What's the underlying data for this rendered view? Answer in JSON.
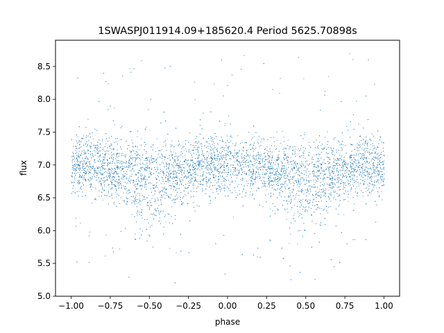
{
  "chart_data": {
    "type": "scatter",
    "title": "1SWASPJ011914.09+185620.4 Period 5625.70898s",
    "xlabel": "phase",
    "ylabel": "flux",
    "xlim": [
      -1.1,
      1.1
    ],
    "ylim": [
      5.0,
      8.9
    ],
    "xticks": [
      -1.0,
      -0.75,
      -0.5,
      -0.25,
      0.0,
      0.25,
      0.5,
      0.75,
      1.0
    ],
    "xtick_labels": [
      "−1.00",
      "−0.75",
      "−0.50",
      "−0.25",
      "0.00",
      "0.25",
      "0.50",
      "0.75",
      "1.00"
    ],
    "yticks": [
      5.0,
      5.5,
      6.0,
      6.5,
      7.0,
      7.5,
      8.0,
      8.5
    ],
    "ytick_labels": [
      "5.0",
      "5.5",
      "6.0",
      "6.5",
      "7.0",
      "7.5",
      "8.0",
      "8.5"
    ],
    "grid": false,
    "point_color": "#1f77b4",
    "series": [
      {
        "x_range": [
          -1.0,
          1.0
        ],
        "baseline_flux": 7.0,
        "dip_phases": [
          -0.5,
          0.5
        ],
        "dip_min_flux": 6.6,
        "core_band": [
          6.4,
          7.5
        ],
        "outlier_range": [
          5.2,
          8.7
        ]
      }
    ]
  }
}
